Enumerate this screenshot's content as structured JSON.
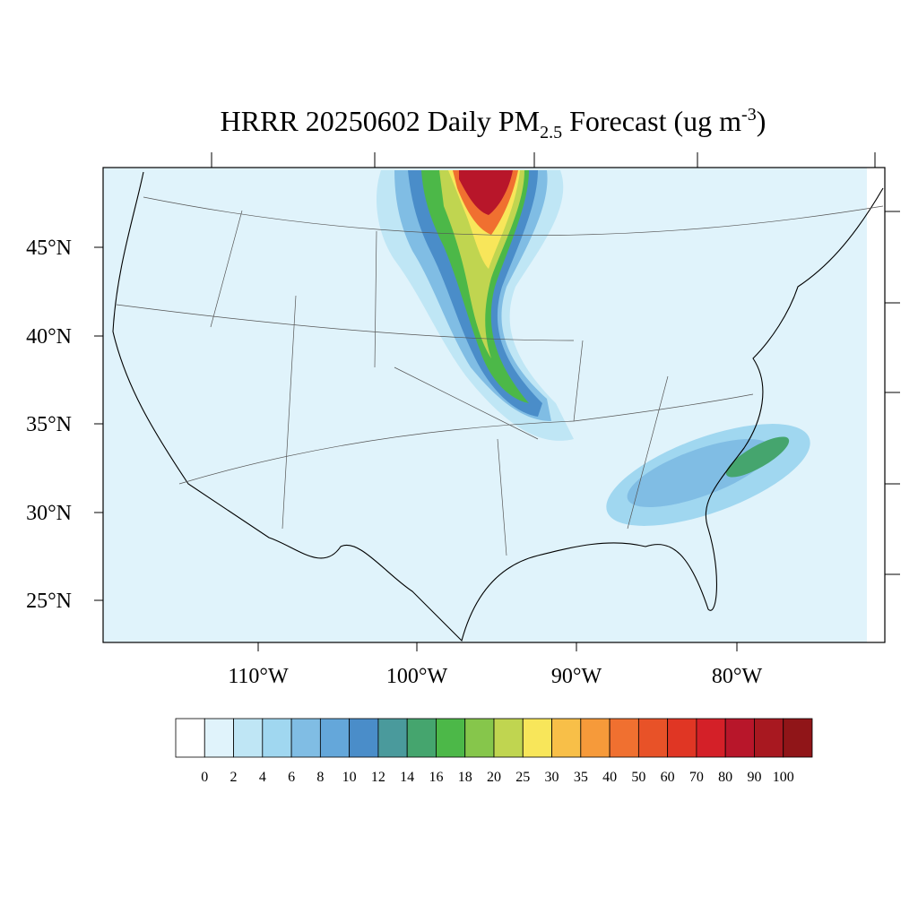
{
  "title": {
    "prefix": "HRRR 20250602 Daily PM",
    "sub": "2.5",
    "middle": " Forecast (ug m",
    "sup": "-3",
    "suffix": ")"
  },
  "latitude_labels": [
    "45°N",
    "40°N",
    "35°N",
    "30°N",
    "25°N"
  ],
  "longitude_labels": [
    "110°W",
    "100°W",
    "90°W",
    "80°W"
  ],
  "colorbar": {
    "levels": [
      0,
      2,
      4,
      6,
      8,
      10,
      12,
      14,
      16,
      18,
      20,
      25,
      30,
      35,
      40,
      50,
      60,
      70,
      80,
      90,
      100
    ],
    "colors": [
      "#ffffff",
      "#e0f3fb",
      "#bfe6f5",
      "#a0d7f0",
      "#80bde4",
      "#64a7da",
      "#4a8dc9",
      "#4a9a9c",
      "#45a56e",
      "#4cb848",
      "#86c64b",
      "#c0d550",
      "#f8e65a",
      "#f8bf48",
      "#f69a3a",
      "#f07030",
      "#e85228",
      "#e03624",
      "#d42028",
      "#b8162a",
      "#a81820",
      "#901518"
    ]
  }
}
